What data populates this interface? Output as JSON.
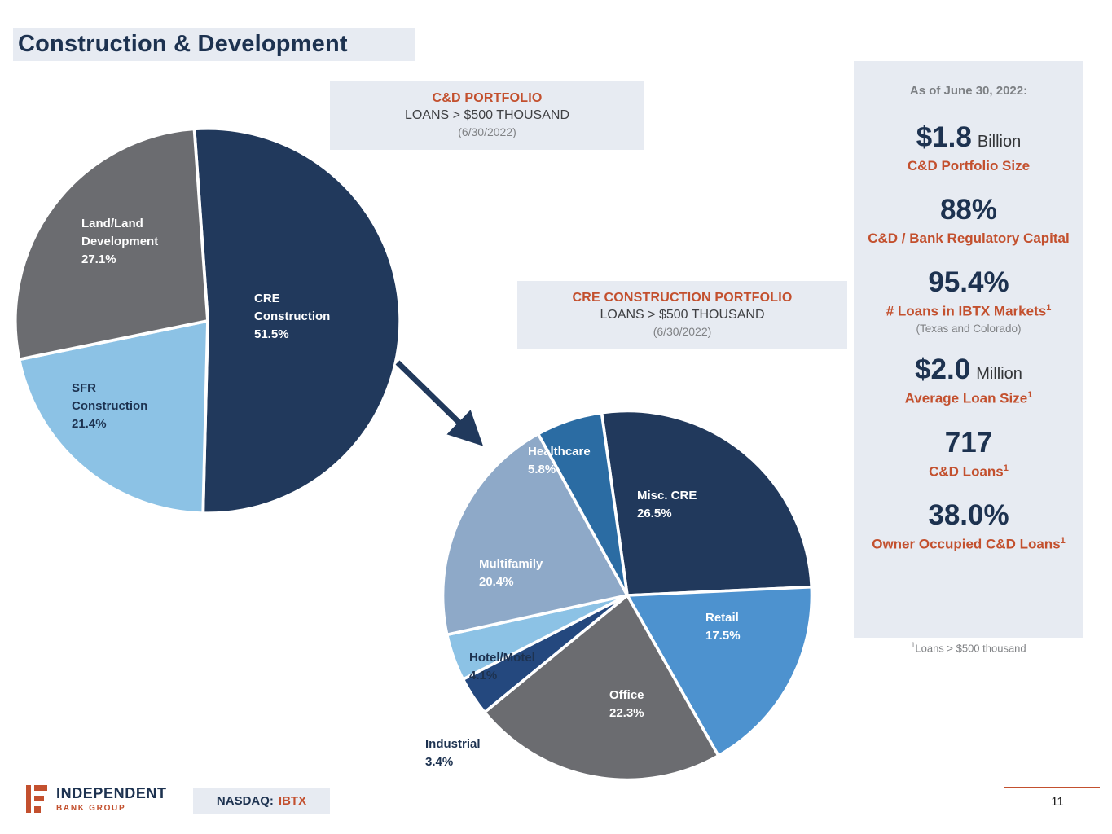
{
  "slide": {
    "title": "Construction & Development",
    "page_number": "11"
  },
  "stats_panel": {
    "heading": "As of June 30, 2022:",
    "items": [
      {
        "value": "$1.8",
        "unit": "Billion",
        "label": "C&D Portfolio Size",
        "sup": "",
        "note": ""
      },
      {
        "value": "88%",
        "unit": "",
        "label": "C&D / Bank Regulatory Capital",
        "sup": "",
        "note": ""
      },
      {
        "value": "95.4%",
        "unit": "",
        "label": "# Loans in IBTX Markets",
        "sup": "1",
        "note": "(Texas and Colorado)"
      },
      {
        "value": "$2.0",
        "unit": "Million",
        "label": "Average Loan Size",
        "sup": "1",
        "note": ""
      },
      {
        "value": "717",
        "unit": "",
        "label": "C&D Loans",
        "sup": "1",
        "note": ""
      },
      {
        "value": "38.0%",
        "unit": "",
        "label": "Owner Occupied C&D Loans",
        "sup": "1",
        "note": ""
      }
    ],
    "footnote_sup": "1",
    "footnote": "Loans > $500 thousand"
  },
  "footer": {
    "logo_line1": "INDEPENDENT",
    "logo_line2": "BANK GROUP",
    "nasdaq_label": "NASDAQ:",
    "ticker": "IBTX"
  },
  "colors": {
    "navy": "#21395c",
    "accent_red": "#c3502e",
    "panel_bg": "#e7ebf2"
  },
  "chart_data": [
    {
      "type": "pie",
      "title": "C&D PORTFOLIO",
      "subtitle": "LOANS > $500 THOUSAND",
      "date": "(6/30/2022)",
      "start_angle_deg": -4,
      "legend_position": "none",
      "labels_inside": true,
      "slices": [
        {
          "label": "CRE Construction",
          "value": 51.5,
          "pct": "51.5%",
          "color": "#21395c"
        },
        {
          "label": "SFR Construction",
          "value": 21.4,
          "pct": "21.4%",
          "color": "#8cc2e5"
        },
        {
          "label": "Land/Land Development",
          "value": 27.1,
          "pct": "27.1%",
          "color": "#6b6c70"
        }
      ]
    },
    {
      "type": "pie",
      "title": "CRE CONSTRUCTION PORTFOLIO",
      "subtitle": "LOANS > $500 THOUSAND",
      "date": "(6/30/2022)",
      "start_angle_deg": -8,
      "legend_position": "none",
      "labels_inside": true,
      "slices": [
        {
          "label": "Misc. CRE",
          "value": 26.5,
          "pct": "26.5%",
          "color": "#21395c"
        },
        {
          "label": "Retail",
          "value": 17.5,
          "pct": "17.5%",
          "color": "#4d92cf"
        },
        {
          "label": "Office",
          "value": 22.3,
          "pct": "22.3%",
          "color": "#6b6c70"
        },
        {
          "label": "Industrial",
          "value": 3.4,
          "pct": "3.4%",
          "color": "#24487e"
        },
        {
          "label": "Hotel/Motel",
          "value": 4.1,
          "pct": "4.1%",
          "color": "#8cc2e5"
        },
        {
          "label": "Multifamily",
          "value": 20.4,
          "pct": "20.4%",
          "color": "#8ea9c8"
        },
        {
          "label": "Healthcare",
          "value": 5.8,
          "pct": "5.8%",
          "color": "#2b6ca3"
        }
      ]
    }
  ]
}
